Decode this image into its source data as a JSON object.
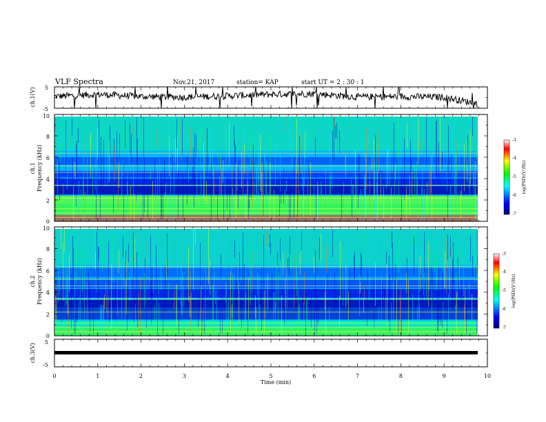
{
  "header": {
    "title": "VLF Spectra",
    "date": "Nov.21, 2017",
    "station": "station= KAP",
    "start": "start  UT =   2 : 30 : 1"
  },
  "colors": {
    "spectrogram_base": "#00b4ff",
    "colormap": [
      "#000080",
      "#0000ff",
      "#00ffff",
      "#00ff00",
      "#ffff00",
      "#ff0000",
      "#ffffff"
    ]
  },
  "chart_data": [
    {
      "type": "line",
      "name": "ch1-waveform-panel",
      "ylabel": "ch.1(V)",
      "ylim": [
        -5,
        5
      ],
      "yticks": [
        "5",
        "-5"
      ],
      "xlim": [
        0,
        10
      ],
      "description_values": {
        "x_min": [
          0,
          1,
          2,
          3,
          4,
          5,
          6,
          7,
          8,
          9,
          9.8
        ],
        "y_V": [
          0.5,
          1.5,
          0.5,
          0.2,
          0.8,
          1.5,
          1.8,
          0.3,
          0.5,
          0.2,
          -3.0
        ]
      }
    },
    {
      "type": "heatmap",
      "name": "ch1-spectrogram",
      "ylabel": "ch.1\nFrequency (kHz)",
      "ylim": [
        0,
        10
      ],
      "xlim": [
        0,
        10
      ],
      "yticks": [
        "0",
        "2",
        "4",
        "6",
        "8",
        "10"
      ],
      "colorbar": {
        "label": "log(PSD)(V²/Hz)",
        "range": [
          -7,
          -3
        ],
        "ticks": [
          "-3",
          "-4",
          "-5",
          "-6",
          "-7"
        ]
      }
    },
    {
      "type": "heatmap",
      "name": "ch2-spectrogram",
      "ylabel": "ch.2\nFrequency (kHz)",
      "ylim": [
        0,
        10
      ],
      "xlim": [
        0,
        10
      ],
      "yticks": [
        "0",
        "2",
        "4",
        "6",
        "8",
        "10"
      ],
      "colorbar": {
        "label": "log(PSD)(V²/Hz)",
        "range": [
          -7,
          -3
        ],
        "ticks": [
          "-3",
          "-4",
          "-5",
          "-6",
          "-7"
        ]
      }
    },
    {
      "type": "line",
      "name": "ch3-waveform-panel",
      "ylabel": "ch.3(V)",
      "ylim": [
        -5,
        5
      ],
      "xlim": [
        0,
        10
      ],
      "yticks": [
        "5",
        "-5"
      ],
      "x": [
        0,
        9.8
      ],
      "y": [
        -1.5,
        -1.5
      ]
    }
  ],
  "xaxis": {
    "label": "Time  (min)",
    "ticks": [
      "0",
      "1",
      "2",
      "3",
      "4",
      "5",
      "6",
      "7",
      "8",
      "9",
      "10"
    ]
  }
}
